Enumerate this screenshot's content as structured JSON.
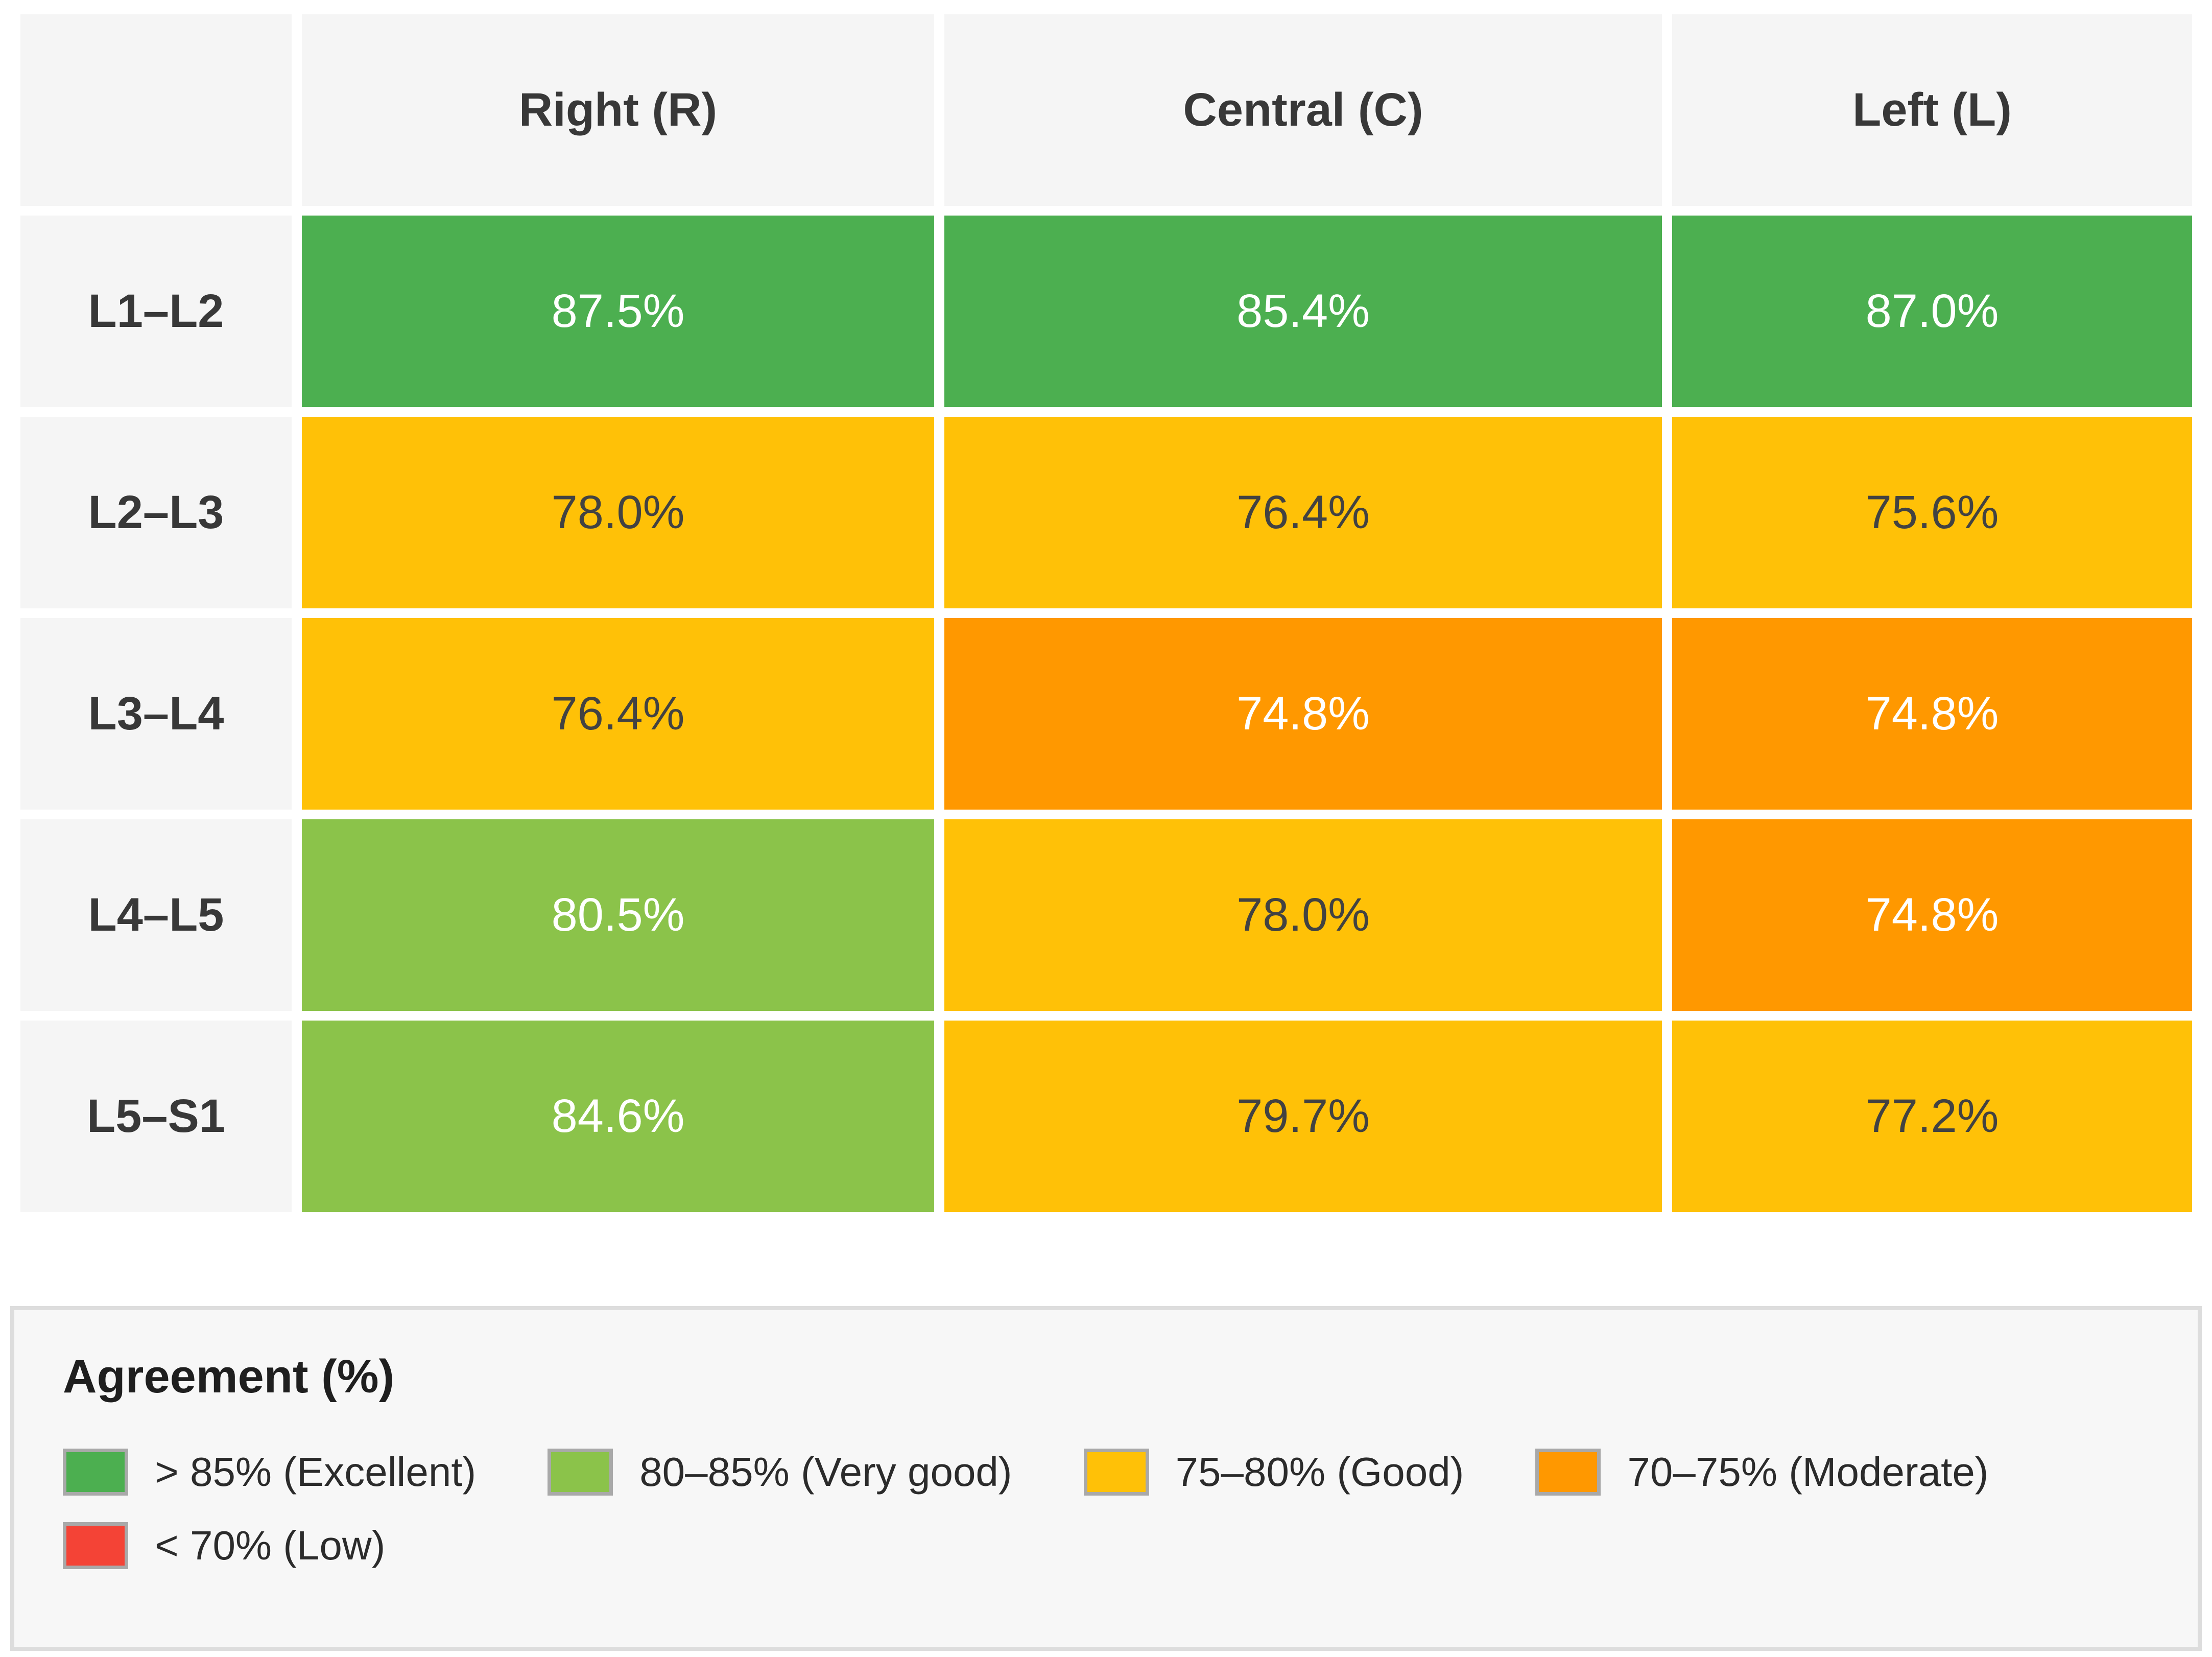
{
  "chart_data": {
    "type": "heatmap",
    "unit": "%",
    "columns": [
      "Right (R)",
      "Central (C)",
      "Left (L)"
    ],
    "rows": [
      {
        "label": "L1–L2",
        "values": [
          87.5,
          85.4,
          87.0
        ]
      },
      {
        "label": "L2–L3",
        "values": [
          78.0,
          76.4,
          75.6
        ]
      },
      {
        "label": "L3–L4",
        "values": [
          76.4,
          74.8,
          74.8
        ]
      },
      {
        "label": "L4–L5",
        "values": [
          80.5,
          78.0,
          74.8
        ]
      },
      {
        "label": "L5–S1",
        "values": [
          84.6,
          79.7,
          77.2
        ]
      }
    ],
    "cells": [
      [
        {
          "text": "87.5%",
          "bg": "#4CAF50",
          "fg": "#FFFFFF"
        },
        {
          "text": "85.4%",
          "bg": "#4CAF50",
          "fg": "#FFFFFF"
        },
        {
          "text": "87.0%",
          "bg": "#4CAF50",
          "fg": "#FFFFFF"
        }
      ],
      [
        {
          "text": "78.0%",
          "bg": "#FFC107",
          "fg": "#424242"
        },
        {
          "text": "76.4%",
          "bg": "#FFC107",
          "fg": "#424242"
        },
        {
          "text": "75.6%",
          "bg": "#FFC107",
          "fg": "#424242"
        }
      ],
      [
        {
          "text": "76.4%",
          "bg": "#FFC107",
          "fg": "#424242"
        },
        {
          "text": "74.8%",
          "bg": "#FF9800",
          "fg": "#FFFFFF"
        },
        {
          "text": "74.8%",
          "bg": "#FF9800",
          "fg": "#FFFFFF"
        }
      ],
      [
        {
          "text": "80.5%",
          "bg": "#8BC34A",
          "fg": "#FFFFFF"
        },
        {
          "text": "78.0%",
          "bg": "#FFC107",
          "fg": "#424242"
        },
        {
          "text": "74.8%",
          "bg": "#FF9800",
          "fg": "#FFFFFF"
        }
      ],
      [
        {
          "text": "84.6%",
          "bg": "#8BC34A",
          "fg": "#FFFFFF"
        },
        {
          "text": "79.7%",
          "bg": "#FFC107",
          "fg": "#424242"
        },
        {
          "text": "77.2%",
          "bg": "#FFC107",
          "fg": "#424242"
        }
      ]
    ],
    "legend": {
      "title": "Agreement (%)",
      "position": "bottom",
      "items": [
        {
          "label": "> 85% (Excellent)",
          "color": "#4CAF50"
        },
        {
          "label": "80–85% (Very good)",
          "color": "#8BC34A"
        },
        {
          "label": "75–80% (Good)",
          "color": "#FFC107"
        },
        {
          "label": "70–75% (Moderate)",
          "color": "#FF9800"
        },
        {
          "label": "< 70% (Low)",
          "color": "#F44336"
        }
      ]
    },
    "colors": {
      "header_bg": "#F5F5F5",
      "row_label_bg": "#F5F5F5",
      "excellent": "#4CAF50",
      "very_good": "#8BC34A",
      "good": "#FFC107",
      "moderate": "#FF9800",
      "low": "#F44336",
      "legend_panel_bg": "#F7F7F7",
      "legend_panel_border": "#DDDDDD",
      "swatch_border": "#A9A9A9"
    }
  }
}
